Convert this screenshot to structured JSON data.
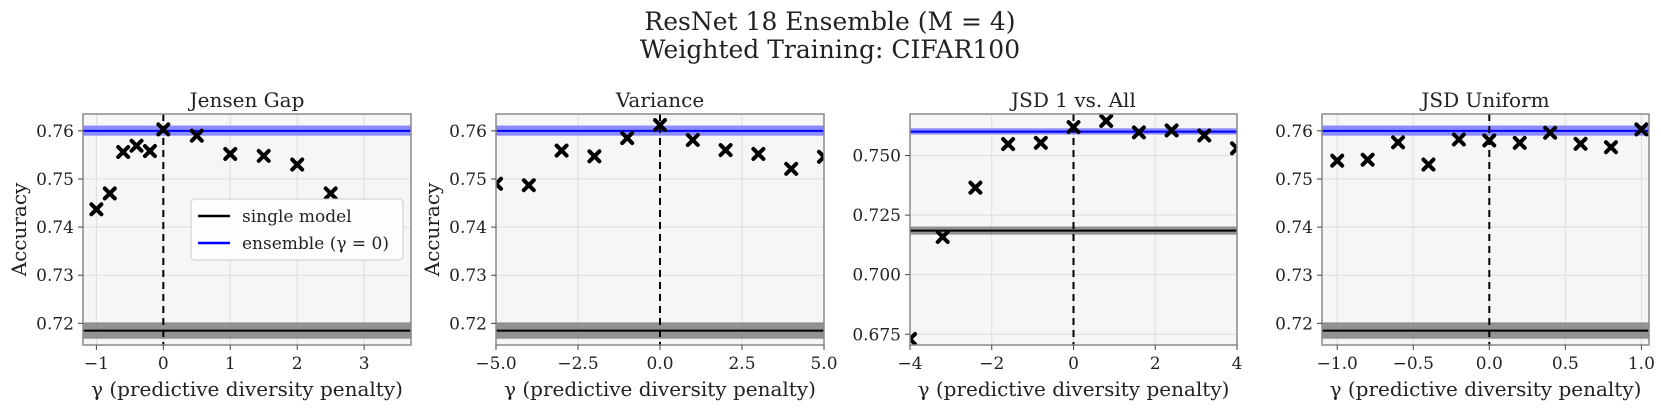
{
  "figure": {
    "title_line1": "ResNet 18 Ensemble (M = 4)",
    "title_line2": "Weighted Training: CIFAR100"
  },
  "colors": {
    "ensemble": "#0000ff",
    "ensemble_band": "#7f7fff",
    "single": "#000000",
    "single_band": "#808080",
    "panel_bg": "#f6f6f6",
    "grid": "#dddddd",
    "marker": "#000000"
  },
  "legend": {
    "items": [
      {
        "label": "single model",
        "color": "#000000"
      },
      {
        "label": "ensemble (γ = 0)",
        "color": "#0000ff"
      }
    ],
    "placement": "center-right of first panel"
  },
  "chart_data": [
    {
      "type": "scatter",
      "title": "Jensen Gap",
      "xlabel": "γ (predictive diversity penalty)",
      "ylabel": "Accuracy",
      "xlim": [
        -1.2,
        3.7
      ],
      "ylim": [
        0.7155,
        0.7635
      ],
      "xticks": [
        -1,
        0,
        1,
        2,
        3
      ],
      "xtick_labels": [
        "−1",
        "0",
        "1",
        "2",
        "3"
      ],
      "yticks": [
        0.72,
        0.73,
        0.74,
        0.75,
        0.76
      ],
      "ytick_labels": [
        "0.72",
        "0.73",
        "0.74",
        "0.75",
        "0.76"
      ],
      "x": [
        -1.0,
        -0.8,
        -0.6,
        -0.4,
        -0.2,
        0.0,
        0.5,
        1.0,
        1.5,
        2.0,
        2.5
      ],
      "y": [
        0.7437,
        0.747,
        0.7556,
        0.7569,
        0.7558,
        0.7603,
        0.759,
        0.7552,
        0.7548,
        0.753,
        0.747
      ],
      "ensemble_line": 0.76,
      "ensemble_band": [
        0.759,
        0.7611
      ],
      "single_line": 0.7185,
      "single_band": [
        0.7168,
        0.7202
      ],
      "vline_x": 0,
      "show_legend": true
    },
    {
      "type": "scatter",
      "title": "Variance",
      "xlabel": "γ (predictive diversity penalty)",
      "ylabel": "Accuracy",
      "xlim": [
        -5.0,
        5.0
      ],
      "ylim": [
        0.7155,
        0.7635
      ],
      "xticks": [
        -5,
        -2.5,
        0,
        2.5,
        5
      ],
      "xtick_labels": [
        "−5.0",
        "−2.5",
        "0.0",
        "2.5",
        "5.0"
      ],
      "yticks": [
        0.72,
        0.73,
        0.74,
        0.75,
        0.76
      ],
      "ytick_labels": [
        "0.72",
        "0.73",
        "0.74",
        "0.75",
        "0.76"
      ],
      "x": [
        -5,
        -4,
        -3,
        -2,
        -1,
        0,
        1,
        2,
        3,
        4,
        5
      ],
      "y": [
        0.749,
        0.7487,
        0.7559,
        0.7547,
        0.7585,
        0.7612,
        0.7581,
        0.756,
        0.7552,
        0.7521,
        0.7546
      ],
      "ensemble_line": 0.76,
      "ensemble_band": [
        0.759,
        0.7611
      ],
      "single_line": 0.7185,
      "single_band": [
        0.7168,
        0.7202
      ],
      "vline_x": 0,
      "show_legend": false
    },
    {
      "type": "scatter",
      "title": "JSD 1 vs. All",
      "xlabel": "γ (predictive diversity penalty)",
      "ylabel": "",
      "xlim": [
        -4.0,
        4.0
      ],
      "ylim": [
        0.6705,
        0.7674
      ],
      "xticks": [
        -4,
        -2,
        0,
        2,
        4
      ],
      "xtick_labels": [
        "−4",
        "−2",
        "0",
        "2",
        "4"
      ],
      "yticks": [
        0.675,
        0.7,
        0.725,
        0.75
      ],
      "ytick_labels": [
        "0.675",
        "0.700",
        "0.725",
        "0.750"
      ],
      "x": [
        -4.0,
        -3.2,
        -2.4,
        -1.6,
        -0.8,
        0.0,
        0.8,
        1.6,
        2.4,
        3.2,
        4.0
      ],
      "y": [
        0.673,
        0.7158,
        0.7365,
        0.7548,
        0.7553,
        0.7619,
        0.7645,
        0.7597,
        0.7605,
        0.7584,
        0.753
      ],
      "ensemble_line": 0.76,
      "ensemble_band": [
        0.7588,
        0.7614
      ],
      "single_line": 0.7185,
      "single_band": [
        0.7168,
        0.7202
      ],
      "vline_x": 0,
      "show_legend": false
    },
    {
      "type": "scatter",
      "title": "JSD Uniform",
      "xlabel": "γ (predictive diversity penalty)",
      "ylabel": "",
      "xlim": [
        -1.1,
        1.05
      ],
      "ylim": [
        0.7155,
        0.7635
      ],
      "xticks": [
        -1,
        -0.5,
        0,
        0.5,
        1
      ],
      "xtick_labels": [
        "−1.0",
        "−0.5",
        "0.0",
        "0.5",
        "1.0"
      ],
      "yticks": [
        0.72,
        0.73,
        0.74,
        0.75,
        0.76
      ],
      "ytick_labels": [
        "0.72",
        "0.73",
        "0.74",
        "0.75",
        "0.76"
      ],
      "x": [
        -1.0,
        -0.8,
        -0.6,
        -0.4,
        -0.2,
        0.0,
        0.2,
        0.4,
        0.6,
        0.8,
        1.0
      ],
      "y": [
        0.7538,
        0.754,
        0.7576,
        0.753,
        0.7582,
        0.758,
        0.7575,
        0.7596,
        0.7573,
        0.7566,
        0.7603
      ],
      "ensemble_line": 0.76,
      "ensemble_band": [
        0.759,
        0.7611
      ],
      "single_line": 0.7185,
      "single_band": [
        0.7168,
        0.7202
      ],
      "vline_x": 0,
      "show_legend": false
    }
  ]
}
